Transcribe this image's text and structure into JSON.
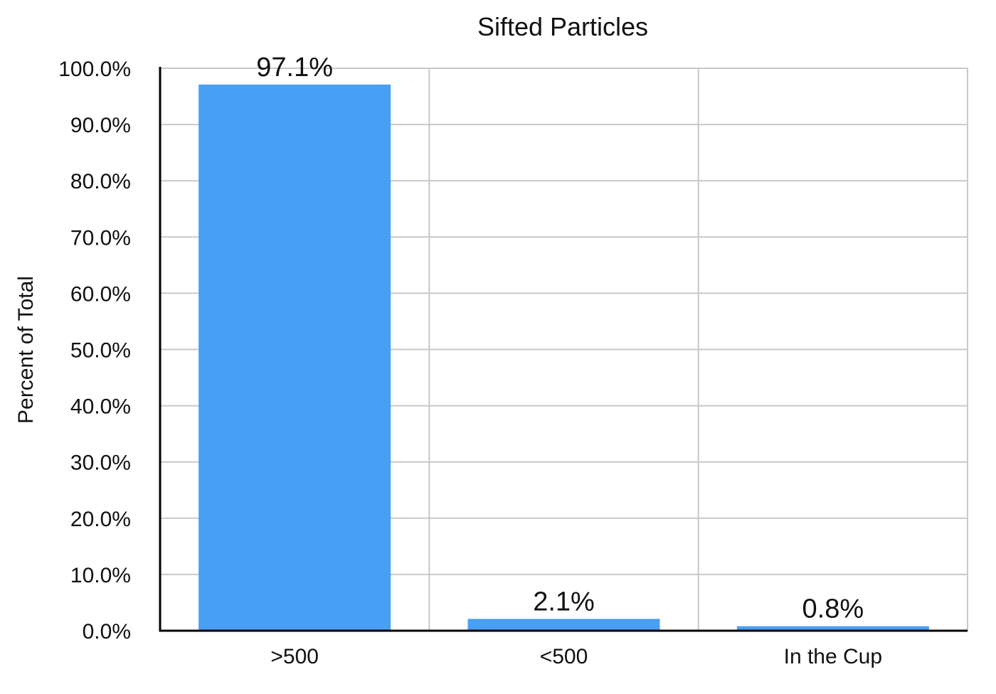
{
  "chart_data": {
    "type": "bar",
    "title": "Sifted Particles",
    "xlabel": "",
    "ylabel": "Percent of Total",
    "categories": [
      ">500",
      "<500",
      "In the Cup"
    ],
    "values": [
      97.1,
      2.1,
      0.8
    ],
    "data_labels": [
      "97.1%",
      "2.1%",
      "0.8%"
    ],
    "ylim": [
      0,
      100
    ],
    "yticks": [
      0,
      10,
      20,
      30,
      40,
      50,
      60,
      70,
      80,
      90,
      100
    ],
    "ytick_labels": [
      "0.0%",
      "10.0%",
      "20.0%",
      "30.0%",
      "40.0%",
      "50.0%",
      "60.0%",
      "70.0%",
      "80.0%",
      "90.0%",
      "100.0%"
    ],
    "grid": true,
    "legend": "none",
    "bar_color": "#489ff3"
  }
}
